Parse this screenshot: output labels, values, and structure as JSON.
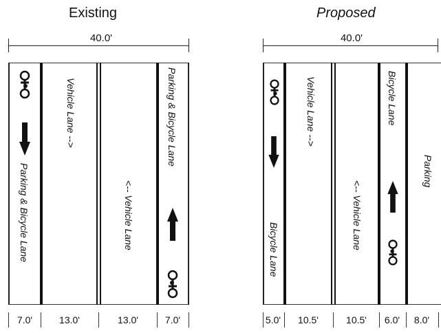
{
  "existing": {
    "title": "Existing",
    "total_width": "40.0'",
    "lanes": [
      {
        "width": "7.0'",
        "label": "Parking & Bicycle Lane"
      },
      {
        "width": "13.0'",
        "label": "Vehicle Lane -->"
      },
      {
        "width": "13.0'",
        "label": "<-- Vehicle Lane"
      },
      {
        "width": "7.0'",
        "label": "Parking & Bicycle Lane"
      }
    ]
  },
  "proposed": {
    "title": "Proposed",
    "total_width": "40.0'",
    "lanes": [
      {
        "width": "5.0'",
        "label": "Bicycle Lane"
      },
      {
        "width": "10.5'",
        "label": "Vehicle Lane -->"
      },
      {
        "width": "10.5'",
        "label": "<-- Vehicle Lane"
      },
      {
        "width": "6.0'",
        "label": "Bicycle Lane"
      },
      {
        "width": "8.0'",
        "label": "Parking"
      }
    ]
  },
  "icons": {
    "bicycle": "bicycle-icon",
    "arrow_down": "arrow-down-icon",
    "arrow_up": "arrow-up-icon"
  }
}
